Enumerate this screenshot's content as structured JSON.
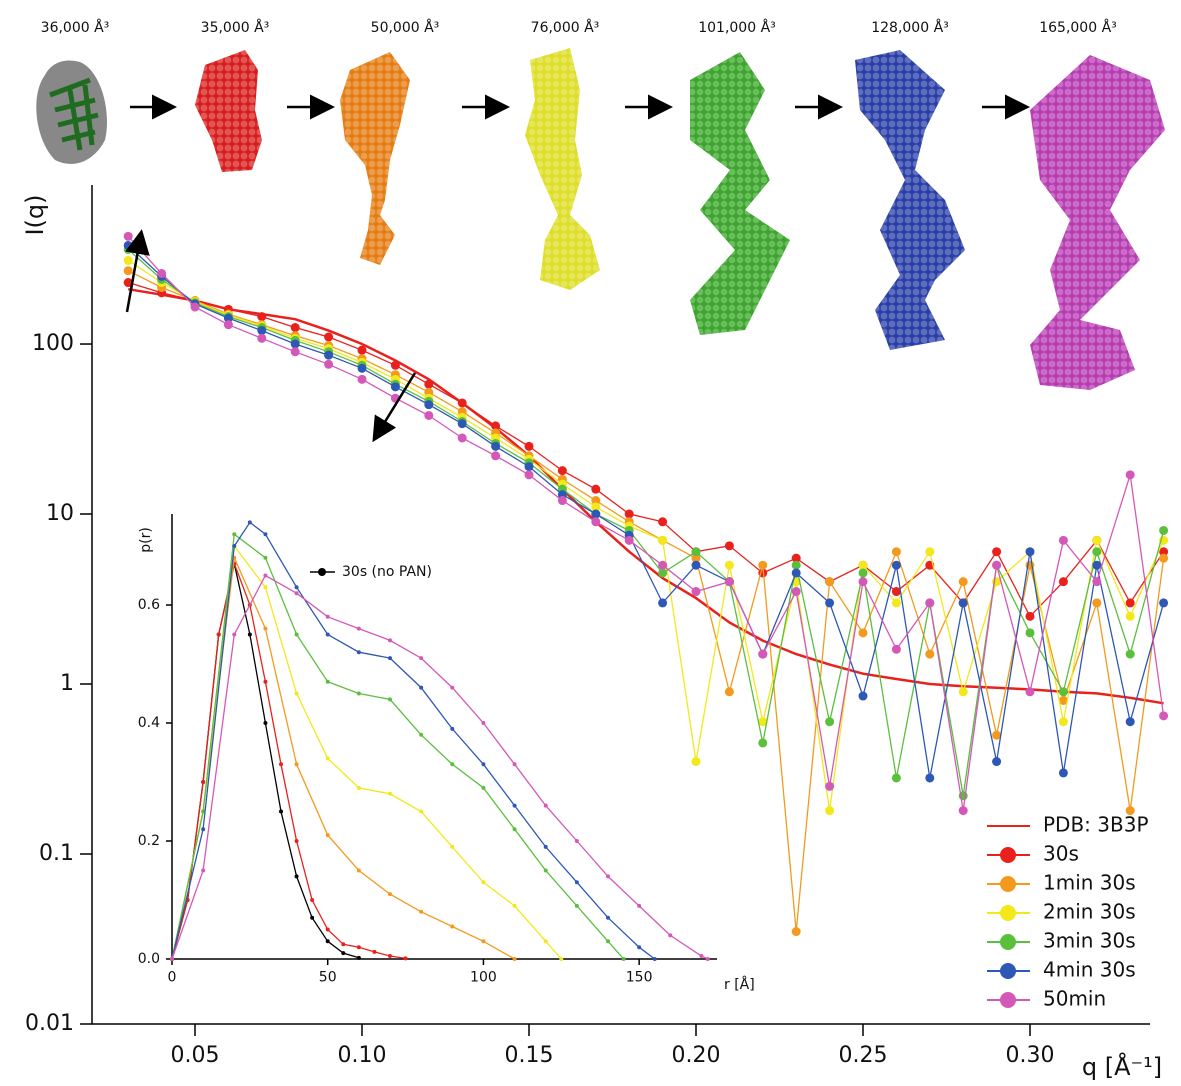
{
  "models": [
    {
      "label": "36,000 Å³"
    },
    {
      "label": "35,000 Å³"
    },
    {
      "label": "50,000 Å³"
    },
    {
      "label": "76,000 Å³"
    },
    {
      "label": "101,000 Å³"
    },
    {
      "label": "128,000 Å³"
    },
    {
      "label": "165,000 Å³"
    }
  ],
  "chart_data": [
    {
      "type": "line",
      "y_label": "I(q)",
      "x_label": "q [Å⁻¹]",
      "log_y": true,
      "legend": "lower right",
      "xlim": [
        0.02,
        0.34
      ],
      "xticks": [
        0.05,
        {
          "value": 0.1,
          "label": "0.10"
        },
        0.15,
        {
          "value": 0.2,
          "label": "0.20"
        },
        0.25,
        {
          "value": 0.3,
          "label": "0.30"
        }
      ],
      "ylim": [
        0.01,
        800
      ],
      "yticks": [
        0.01,
        0.1,
        1,
        10,
        100
      ],
      "x": [
        0.03,
        0.04,
        0.05,
        0.06,
        0.07,
        0.08,
        0.09,
        0.1,
        0.11,
        0.12,
        0.13,
        0.14,
        0.15,
        0.16,
        0.17,
        0.18,
        0.19,
        0.2,
        0.21,
        0.22,
        0.23,
        0.24,
        0.25,
        0.26,
        0.27,
        0.28,
        0.29,
        0.3,
        0.31,
        0.32,
        0.33,
        0.34
      ],
      "series": [
        {
          "name": "PDB: 3B3P",
          "color": "#e8211d",
          "markers": false,
          "values": [
            210,
            195,
            180,
            160,
            150,
            140,
            120,
            100,
            80,
            62,
            45,
            32,
            22,
            14,
            9,
            6,
            4.2,
            3.2,
            2.3,
            1.8,
            1.5,
            1.3,
            1.15,
            1.07,
            1.0,
            0.97,
            0.95,
            0.93,
            0.9,
            0.88,
            0.83,
            0.77
          ]
        },
        {
          "name": "30s",
          "color": "#e8211d",
          "markers": true,
          "values": [
            230,
            200,
            180,
            160,
            145,
            125,
            110,
            92,
            75,
            58,
            45,
            33,
            25,
            18,
            14,
            10,
            9,
            6,
            6.5,
            4.5,
            5.5,
            4,
            5,
            3.5,
            5,
            3,
            6,
            2.5,
            4,
            7,
            3,
            6
          ]
        },
        {
          "name": "1min 30s",
          "color": "#f39a1e",
          "markers": true,
          "values": [
            270,
            215,
            180,
            150,
            130,
            112,
            98,
            82,
            66,
            52,
            40,
            30,
            22,
            16,
            12,
            9,
            7,
            5.5,
            0.9,
            5,
            0.035,
            4,
            2,
            6,
            1.5,
            4,
            0.5,
            5,
            0.8,
            3,
            0.18,
            5.5
          ]
        },
        {
          "name": "2min 30s",
          "color": "#f2e81b",
          "markers": true,
          "values": [
            310,
            230,
            178,
            148,
            128,
            108,
            94,
            78,
            62,
            48,
            37,
            28,
            21,
            15,
            11,
            8.5,
            7,
            0.35,
            5,
            0.6,
            4,
            0.18,
            5,
            3,
            6,
            0.9,
            4,
            6,
            0.6,
            7,
            2.5,
            7
          ]
        },
        {
          "name": "3min 30s",
          "color": "#5bbf3e",
          "markers": true,
          "values": [
            360,
            240,
            175,
            145,
            125,
            105,
            90,
            75,
            58,
            46,
            35,
            26,
            20,
            14,
            10,
            8,
            4.5,
            6,
            4,
            0.45,
            5,
            0.6,
            4.5,
            0.28,
            3,
            0.22,
            5,
            2,
            0.9,
            6,
            1.5,
            8
          ]
        },
        {
          "name": "4min 30s",
          "color": "#2e58b5",
          "markers": true,
          "values": [
            380,
            250,
            172,
            142,
            120,
            100,
            86,
            72,
            56,
            44,
            34,
            25,
            19,
            13,
            10,
            7.5,
            3,
            5,
            4,
            1.5,
            4.5,
            3,
            0.85,
            5,
            0.28,
            3,
            0.35,
            6,
            0.3,
            5,
            0.6,
            3
          ]
        },
        {
          "name": "50min",
          "color": "#d458b8",
          "markers": true,
          "values": [
            430,
            260,
            165,
            130,
            108,
            90,
            76,
            62,
            48,
            38,
            28,
            22,
            17,
            12,
            9,
            7,
            5,
            3.5,
            4,
            1.5,
            3.5,
            0.25,
            4,
            1.6,
            3,
            0.18,
            5,
            0.9,
            7,
            4,
            17,
            0.65
          ]
        }
      ]
    },
    {
      "type": "line",
      "y_label": "p(r)",
      "x_label": "r [Å]",
      "log_y": false,
      "xlim": [
        0,
        175
      ],
      "xticks": [
        0,
        50,
        100,
        150
      ],
      "ylim": [
        0,
        0.75
      ],
      "yticks": [
        {
          "value": 0,
          "label": "0.0"
        },
        0.2,
        0.4,
        0.6
      ],
      "series": [
        {
          "name": "30s (no PAN)",
          "color": "#000000",
          "x": [
            0,
            5,
            10,
            15,
            20,
            25,
            30,
            35,
            40,
            45,
            50,
            55,
            60
          ],
          "values": [
            0,
            0.1,
            0.3,
            0.55,
            0.67,
            0.55,
            0.4,
            0.25,
            0.14,
            0.07,
            0.03,
            0.01,
            0.002
          ]
        },
        {
          "color": "#e8211d",
          "x": [
            0,
            5,
            10,
            15,
            20,
            25,
            30,
            35,
            40,
            45,
            50,
            55,
            60,
            65,
            70,
            75
          ],
          "values": [
            0,
            0.1,
            0.3,
            0.55,
            0.67,
            0.6,
            0.47,
            0.33,
            0.2,
            0.1,
            0.05,
            0.025,
            0.02,
            0.012,
            0.005,
            0.001
          ]
        },
        {
          "color": "#f39a1e",
          "x": [
            0,
            10,
            20,
            30,
            40,
            50,
            60,
            70,
            80,
            90,
            100,
            110
          ],
          "values": [
            0,
            0.25,
            0.68,
            0.56,
            0.33,
            0.21,
            0.15,
            0.11,
            0.08,
            0.055,
            0.03,
            0
          ]
        },
        {
          "color": "#f2e81b",
          "x": [
            0,
            10,
            20,
            30,
            40,
            50,
            60,
            70,
            80,
            90,
            100,
            110,
            120,
            125
          ],
          "values": [
            0,
            0.25,
            0.7,
            0.63,
            0.45,
            0.34,
            0.29,
            0.28,
            0.25,
            0.19,
            0.13,
            0.09,
            0.03,
            0
          ]
        },
        {
          "color": "#5bbf3e",
          "x": [
            0,
            10,
            20,
            30,
            40,
            50,
            60,
            70,
            80,
            90,
            100,
            110,
            120,
            130,
            140,
            145
          ],
          "values": [
            0,
            0.25,
            0.72,
            0.68,
            0.55,
            0.47,
            0.45,
            0.44,
            0.38,
            0.33,
            0.29,
            0.22,
            0.15,
            0.09,
            0.03,
            0
          ]
        },
        {
          "color": "#2e58b5",
          "x": [
            0,
            10,
            20,
            25,
            30,
            40,
            50,
            60,
            70,
            80,
            90,
            100,
            110,
            120,
            130,
            140,
            150,
            155
          ],
          "values": [
            0,
            0.22,
            0.7,
            0.74,
            0.72,
            0.63,
            0.55,
            0.52,
            0.51,
            0.46,
            0.39,
            0.33,
            0.26,
            0.19,
            0.13,
            0.07,
            0.02,
            0
          ]
        },
        {
          "color": "#d458b8",
          "x": [
            0,
            10,
            20,
            30,
            40,
            50,
            60,
            70,
            80,
            90,
            100,
            110,
            120,
            130,
            140,
            150,
            160,
            170,
            172
          ],
          "values": [
            0,
            0.15,
            0.55,
            0.65,
            0.62,
            0.58,
            0.56,
            0.54,
            0.51,
            0.46,
            0.4,
            0.33,
            0.26,
            0.2,
            0.14,
            0.09,
            0.04,
            0.005,
            0
          ]
        }
      ]
    }
  ]
}
